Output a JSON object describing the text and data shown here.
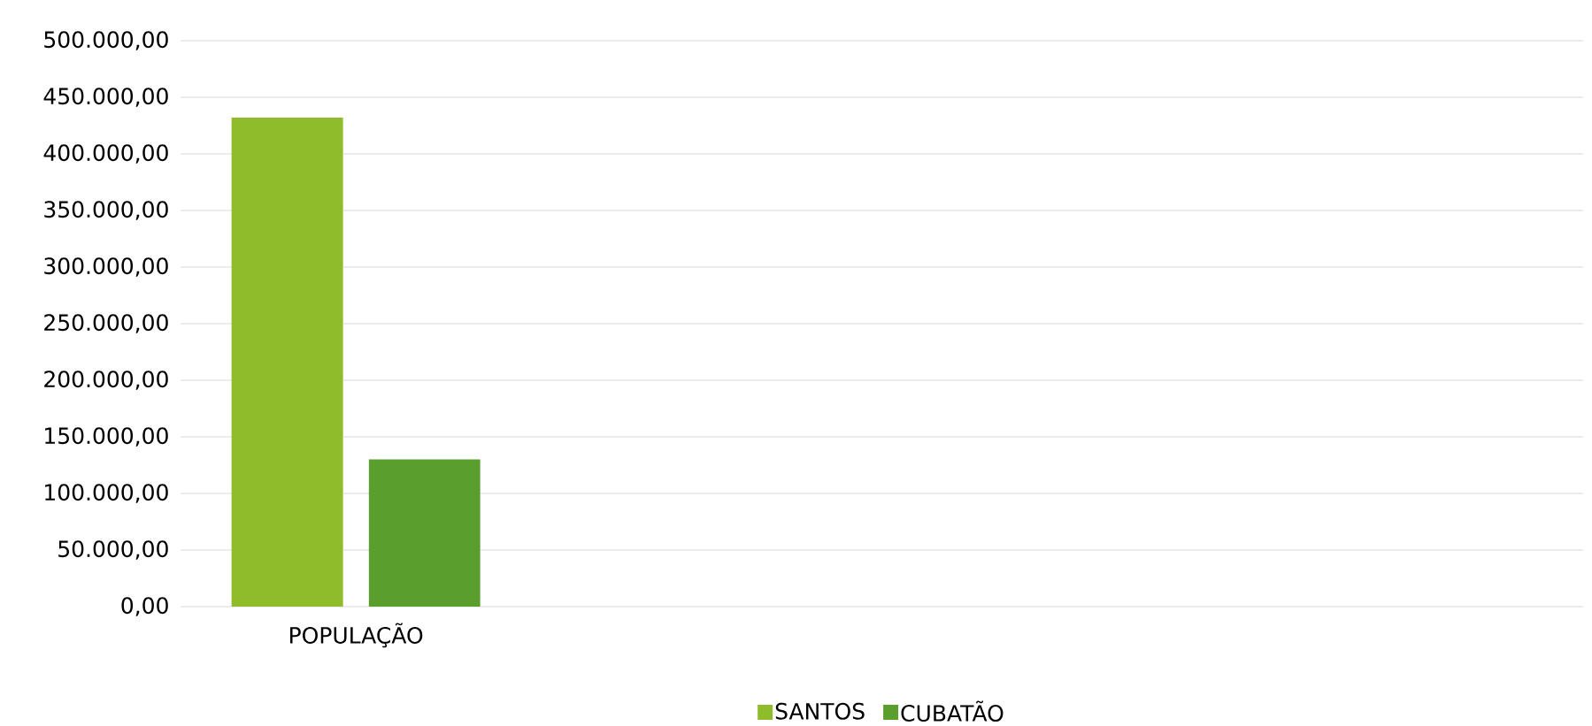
{
  "chart_data": {
    "type": "bar",
    "categories": [
      "POPULAÇÃO",
      null,
      null,
      null
    ],
    "series": [
      {
        "name": "SANTOS",
        "color": "#8fbc2b",
        "values": [
          432000,
          null,
          null,
          null
        ]
      },
      {
        "name": "CUBATÃO",
        "color": "#5a9e2e",
        "values": [
          130000,
          null,
          null,
          null
        ]
      }
    ],
    "ylim": [
      0,
      500000
    ],
    "yticks": [
      {
        "value": 0,
        "label": "0,00"
      },
      {
        "value": 50000,
        "label": "50.000,00"
      },
      {
        "value": 100000,
        "label": "100.000,00"
      },
      {
        "value": 150000,
        "label": "150.000,00"
      },
      {
        "value": 200000,
        "label": "200.000,00"
      },
      {
        "value": 250000,
        "label": "250.000,00"
      },
      {
        "value": 300000,
        "label": "300.000,00"
      },
      {
        "value": 350000,
        "label": "350.000,00"
      },
      {
        "value": 400000,
        "label": "400.000,00"
      },
      {
        "value": 450000,
        "label": "450.000,00"
      },
      {
        "value": 500000,
        "label": "500.000,00"
      }
    ],
    "grid": "y",
    "legend": "bottom"
  }
}
